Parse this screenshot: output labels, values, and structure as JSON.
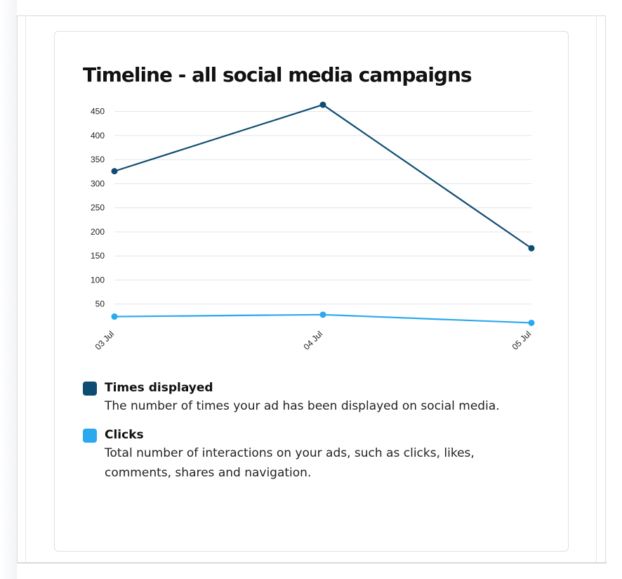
{
  "chart_data": {
    "type": "line",
    "title": "Timeline - all social media campaigns",
    "categories": [
      "03 Jul",
      "04 Jul",
      "05 Jul"
    ],
    "yticks": [
      50,
      100,
      150,
      200,
      250,
      300,
      350,
      400,
      450
    ],
    "ylim": [
      0,
      465
    ],
    "grid": true,
    "legend_position": "bottom",
    "series": [
      {
        "name": "Times displayed",
        "description": "The number of times your ad has been displayed on social media.",
        "color": "#0f4c73",
        "values": [
          326,
          464,
          166
        ]
      },
      {
        "name": "Clicks",
        "description": "Total number of interactions on your ads, such as clicks, likes, comments, shares and navigation.",
        "color": "#2aa8f0",
        "values": [
          24,
          28,
          11
        ]
      }
    ]
  }
}
